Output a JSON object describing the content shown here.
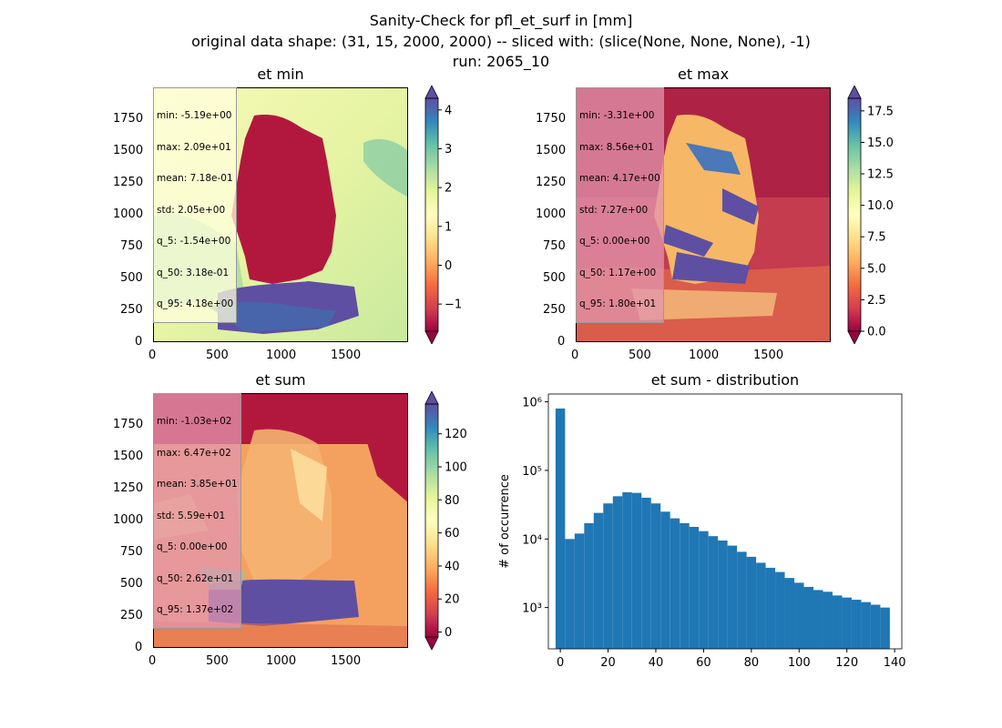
{
  "suptitle": {
    "line1": "Sanity-Check for pfl_et_surf in [mm]",
    "line2": "original data shape: (31, 15, 2000, 2000) -- sliced with: (slice(None, None, None), -1)",
    "line3": "run: 2065_10"
  },
  "colors": {
    "colormap": "Spectral",
    "histogram_bar": "#1f77b4"
  },
  "panels": {
    "et_min": {
      "title": "et min",
      "xticks": [
        "0",
        "500",
        "1000",
        "1500"
      ],
      "yticks": [
        "0",
        "250",
        "500",
        "750",
        "1000",
        "1250",
        "1500",
        "1750"
      ],
      "cbar_ticks": [
        "−1",
        "0",
        "1",
        "2",
        "3",
        "4"
      ],
      "cbar_range": [
        -1.7,
        4.3
      ],
      "cbar_tick_values": [
        -1,
        0,
        1,
        2,
        3,
        4
      ],
      "stats": [
        "min: -5.19e+00",
        "max: 2.09e+01",
        "mean: 7.18e-01",
        "std: 2.05e+00",
        "q_5: -1.54e+00",
        "q_50: 3.18e-01",
        "q_95: 4.18e+00"
      ]
    },
    "et_max": {
      "title": "et max",
      "xticks": [
        "0",
        "500",
        "1000",
        "1500"
      ],
      "yticks": [
        "0",
        "250",
        "500",
        "750",
        "1000",
        "1250",
        "1500",
        "1750"
      ],
      "cbar_ticks": [
        "0.0",
        "2.5",
        "5.0",
        "7.5",
        "10.0",
        "12.5",
        "15.0",
        "17.5"
      ],
      "cbar_range": [
        0,
        18.5
      ],
      "cbar_tick_values": [
        0,
        2.5,
        5,
        7.5,
        10,
        12.5,
        15,
        17.5
      ],
      "stats": [
        "min: -3.31e+00",
        "max: 8.56e+01",
        "mean: 4.17e+00",
        "std: 7.27e+00",
        "q_5: 0.00e+00",
        "q_50: 1.17e+00",
        "q_95: 1.80e+01"
      ]
    },
    "et_sum": {
      "title": "et sum",
      "xticks": [
        "0",
        "500",
        "1000",
        "1500"
      ],
      "yticks": [
        "0",
        "250",
        "500",
        "750",
        "1000",
        "1250",
        "1500",
        "1750"
      ],
      "cbar_ticks": [
        "0",
        "20",
        "40",
        "60",
        "80",
        "100",
        "120"
      ],
      "cbar_range": [
        -3,
        138
      ],
      "cbar_tick_values": [
        0,
        20,
        40,
        60,
        80,
        100,
        120
      ],
      "stats": [
        "min: -1.03e+02",
        "max: 6.47e+02",
        "mean: 3.85e+01",
        "std: 5.59e+01",
        "q_5: 0.00e+00",
        "q_50: 2.62e+01",
        "q_95: 1.37e+02"
      ]
    },
    "hist": {
      "title": "et sum - distribution",
      "ylabel": "# of occurrence",
      "xticks": [
        "0",
        "20",
        "40",
        "60",
        "80",
        "100",
        "120",
        "140"
      ],
      "yticks": [
        "10³",
        "10⁴",
        "10⁵",
        "10⁶"
      ]
    }
  },
  "chart_data": [
    {
      "type": "heatmap",
      "title": "et min",
      "xlim": [
        0,
        2000
      ],
      "ylim": [
        0,
        2000
      ],
      "colorbar_range": [
        -1.7,
        4.3
      ],
      "colormap": "Spectral"
    },
    {
      "type": "heatmap",
      "title": "et max",
      "xlim": [
        0,
        2000
      ],
      "ylim": [
        0,
        2000
      ],
      "colorbar_range": [
        0,
        18.5
      ],
      "colormap": "Spectral"
    },
    {
      "type": "heatmap",
      "title": "et sum",
      "xlim": [
        0,
        2000
      ],
      "ylim": [
        0,
        2000
      ],
      "colorbar_range": [
        -3,
        138
      ],
      "colormap": "Spectral"
    },
    {
      "type": "bar",
      "title": "et sum - distribution",
      "ylabel": "# of occurrence",
      "yscale": "log",
      "xlim": [
        -5,
        143
      ],
      "ylim": [
        250,
        1300000
      ],
      "bin_centers": [
        0,
        4,
        8,
        12,
        16,
        20,
        24,
        28,
        32,
        36,
        40,
        44,
        48,
        52,
        56,
        60,
        64,
        68,
        72,
        76,
        80,
        84,
        88,
        92,
        96,
        100,
        104,
        108,
        112,
        116,
        120,
        124,
        128,
        132,
        136
      ],
      "counts": [
        800000,
        10000,
        12000,
        17000,
        24000,
        33000,
        42000,
        48000,
        47000,
        40000,
        33000,
        25000,
        20000,
        17000,
        15000,
        13000,
        11000,
        9500,
        8000,
        6500,
        5500,
        4500,
        3800,
        3300,
        2700,
        2300,
        2000,
        1800,
        1700,
        1500,
        1400,
        1300,
        1200,
        1100,
        1000
      ]
    }
  ]
}
